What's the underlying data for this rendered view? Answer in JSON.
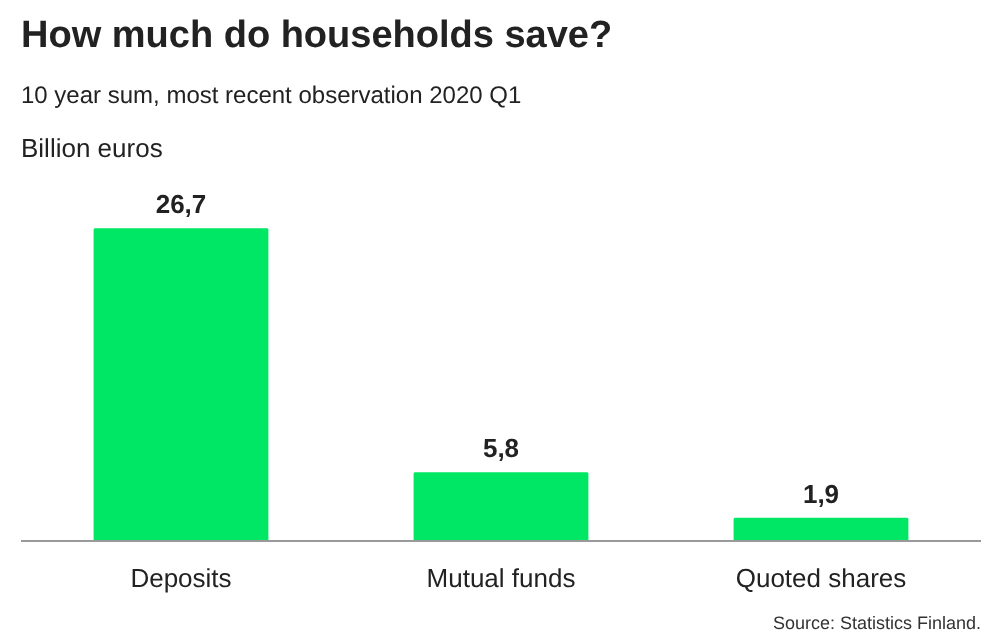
{
  "chart_data": {
    "type": "bar",
    "title": "How much do households save?",
    "subtitle": "10 year sum, most recent observation 2020 Q1",
    "ylabel": "Billion euros",
    "categories": [
      "Deposits",
      "Mutual funds",
      "Quoted shares"
    ],
    "values": [
      26.7,
      5.8,
      1.9
    ],
    "value_labels": [
      "26,7",
      "5,8",
      "1,9"
    ],
    "color": "#00e765",
    "tick_labels": "x",
    "grid": false,
    "annotations": [
      "Source: Statistics Finland."
    ]
  }
}
